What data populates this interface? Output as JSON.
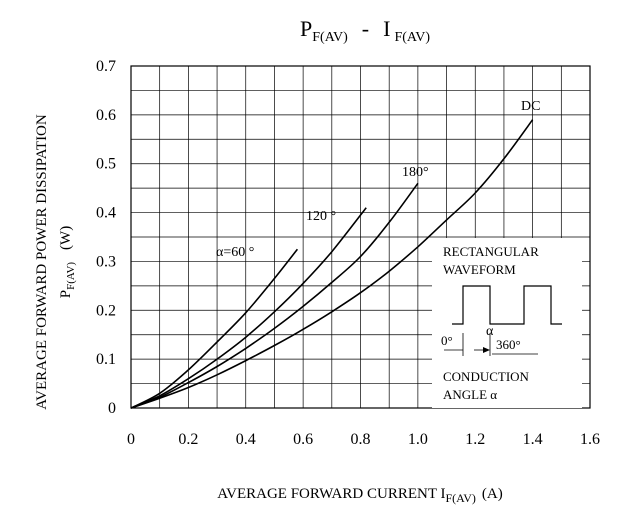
{
  "chart_data": {
    "type": "line",
    "title_main": "P",
    "title_main_sub": "F(AV)",
    "title_sep": "-",
    "title_second": "I",
    "title_second_sub": "F(AV)",
    "xlabel_main": "AVERAGE FORWARD CURRENT I",
    "xlabel_sub": "F(AV)",
    "xlabel_unit": "(A)",
    "ylabel_line1": "AVERAGE FORWARD POWER DISSIPATION",
    "ylabel_line2_main": "P",
    "ylabel_line2_sub": "F(AV)",
    "ylabel_line2_unit": "(W)",
    "xlim": [
      0,
      1.6
    ],
    "ylim": [
      0,
      0.7
    ],
    "x_ticks": [
      "0",
      "0.2",
      "0.4",
      "0.6",
      "0.8",
      "1.0",
      "1.2",
      "1.4",
      "1.6"
    ],
    "y_ticks": [
      "0",
      "0.1",
      "0.2",
      "0.3",
      "0.4",
      "0.5",
      "0.6",
      "0.7"
    ],
    "grid": true,
    "series": [
      {
        "name": "α=60 °",
        "x": [
          0,
          0.1,
          0.2,
          0.3,
          0.4,
          0.5,
          0.58
        ],
        "y": [
          0,
          0.03,
          0.078,
          0.135,
          0.195,
          0.265,
          0.325
        ]
      },
      {
        "name": "120 °",
        "x": [
          0,
          0.1,
          0.2,
          0.3,
          0.4,
          0.5,
          0.6,
          0.7,
          0.82
        ],
        "y": [
          0,
          0.025,
          0.06,
          0.1,
          0.145,
          0.197,
          0.255,
          0.32,
          0.41
        ]
      },
      {
        "name": "180°",
        "x": [
          0,
          0.1,
          0.2,
          0.3,
          0.4,
          0.5,
          0.6,
          0.7,
          0.8,
          0.9,
          1.0
        ],
        "y": [
          0,
          0.022,
          0.052,
          0.085,
          0.122,
          0.163,
          0.208,
          0.257,
          0.31,
          0.38,
          0.46
        ]
      },
      {
        "name": "DC",
        "x": [
          0,
          0.1,
          0.2,
          0.3,
          0.4,
          0.5,
          0.6,
          0.7,
          0.8,
          0.9,
          1.0,
          1.1,
          1.2,
          1.3,
          1.4
        ],
        "y": [
          0,
          0.02,
          0.042,
          0.068,
          0.097,
          0.128,
          0.161,
          0.197,
          0.236,
          0.28,
          0.33,
          0.385,
          0.44,
          0.51,
          0.59
        ]
      }
    ],
    "inset": {
      "line1": "RECTANGULAR",
      "line2": "WAVEFORM",
      "label_zero": "0°",
      "label_alpha": "α",
      "label_360": "360°",
      "line3": "CONDUCTION",
      "line4": "ANGLE α"
    }
  }
}
